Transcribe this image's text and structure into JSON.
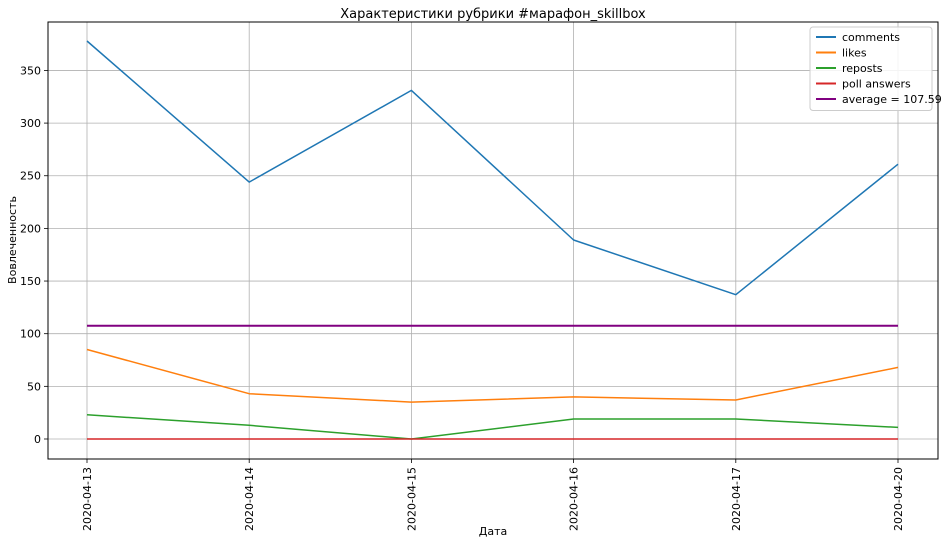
{
  "chart_data": {
    "type": "line",
    "title": "Характеристики рубрики #марафон_skillbox",
    "xlabel": "Дата",
    "ylabel": "Вовлеченность",
    "categories": [
      "2020-04-13",
      "2020-04-14",
      "2020-04-15",
      "2020-04-16",
      "2020-04-17",
      "2020-04-20"
    ],
    "ylim": [
      -19,
      396
    ],
    "yticks": [
      0,
      50,
      100,
      150,
      200,
      250,
      300,
      350
    ],
    "grid": true,
    "legend_position": "top-right",
    "series": [
      {
        "name": "comments",
        "color": "#1f77b4",
        "values": [
          378,
          244,
          331,
          189,
          137,
          261
        ]
      },
      {
        "name": "likes",
        "color": "#ff7f0e",
        "values": [
          85,
          43,
          35,
          40,
          37,
          68
        ]
      },
      {
        "name": "reposts",
        "color": "#2ca02c",
        "values": [
          23,
          13,
          0,
          19,
          19,
          11
        ]
      },
      {
        "name": "poll answers",
        "color": "#d62728",
        "values": [
          0,
          0,
          0,
          0,
          0,
          0
        ]
      },
      {
        "name": "average = 107.59",
        "color": "#800080",
        "values": [
          107.59,
          107.59,
          107.59,
          107.59,
          107.59,
          107.59
        ]
      }
    ]
  }
}
